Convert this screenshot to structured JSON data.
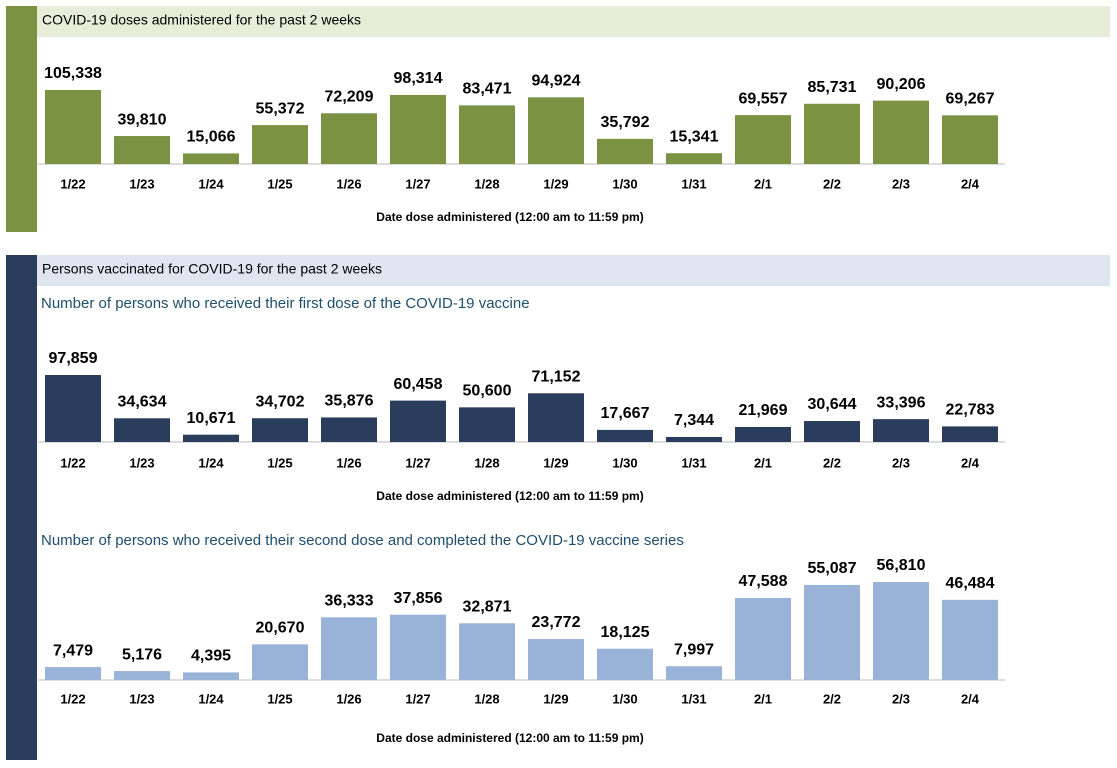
{
  "sections": [
    {
      "title": "COVID-19 doses administered for the past 2 weeks"
    },
    {
      "title": "Persons vaccinated for COVID-19 for the past 2 weeks"
    }
  ],
  "chart_data": [
    {
      "type": "bar",
      "categories": [
        "1/22",
        "1/23",
        "1/24",
        "1/25",
        "1/26",
        "1/27",
        "1/28",
        "1/29",
        "1/30",
        "1/31",
        "2/1",
        "2/2",
        "2/3",
        "2/4"
      ],
      "values": [
        105338,
        39810,
        15066,
        55372,
        72209,
        98314,
        83471,
        94924,
        35792,
        15341,
        69557,
        85731,
        90206,
        69267
      ],
      "value_labels": [
        "105,338",
        "39,810",
        "15,066",
        "55,372",
        "72,209",
        "98,314",
        "83,471",
        "94,924",
        "35,792",
        "15,341",
        "69,557",
        "85,731",
        "90,206",
        "69,267"
      ],
      "color": "#7b9242",
      "xlabel": "Date dose administered (12:00 am to 11:59 pm)"
    },
    {
      "type": "bar",
      "title": "Number of persons who received their first dose of the COVID-19 vaccine",
      "categories": [
        "1/22",
        "1/23",
        "1/24",
        "1/25",
        "1/26",
        "1/27",
        "1/28",
        "1/29",
        "1/30",
        "1/31",
        "2/1",
        "2/2",
        "2/3",
        "2/4"
      ],
      "values": [
        97859,
        34634,
        10671,
        34702,
        35876,
        60458,
        50600,
        71152,
        17667,
        7344,
        21969,
        30644,
        33396,
        22783
      ],
      "value_labels": [
        "97,859",
        "34,634",
        "10,671",
        "34,702",
        "35,876",
        "60,458",
        "50,600",
        "71,152",
        "17,667",
        "7,344",
        "21,969",
        "30,644",
        "33,396",
        "22,783"
      ],
      "color": "#2a3d5c",
      "xlabel": "Date dose administered (12:00 am to 11:59 pm)"
    },
    {
      "type": "bar",
      "title": "Number of persons who received their second dose and completed the COVID-19 vaccine series",
      "categories": [
        "1/22",
        "1/23",
        "1/24",
        "1/25",
        "1/26",
        "1/27",
        "1/28",
        "1/29",
        "1/30",
        "1/31",
        "2/1",
        "2/2",
        "2/3",
        "2/4"
      ],
      "values": [
        7479,
        5176,
        4395,
        20670,
        36333,
        37856,
        32871,
        23772,
        18125,
        7997,
        47588,
        55087,
        56810,
        46484
      ],
      "value_labels": [
        "7,479",
        "5,176",
        "4,395",
        "20,670",
        "36,333",
        "37,856",
        "32,871",
        "23,772",
        "18,125",
        "7,997",
        "47,588",
        "55,087",
        "56,810",
        "46,484"
      ],
      "color": "#99b2d7",
      "xlabel": "Date dose administered (12:00 am to 11:59 pm)"
    }
  ]
}
